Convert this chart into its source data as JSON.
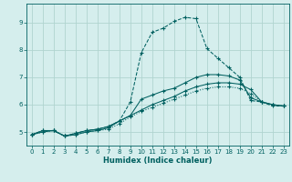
{
  "title": "",
  "xlabel": "Humidex (Indice chaleur)",
  "ylabel": "",
  "background_color": "#d5eeed",
  "grid_color": "#b0d4d0",
  "line_color": "#006060",
  "xlim": [
    -0.5,
    23.5
  ],
  "ylim": [
    4.5,
    9.7
  ],
  "yticks": [
    5,
    6,
    7,
    8,
    9
  ],
  "xticks": [
    0,
    1,
    2,
    3,
    4,
    5,
    6,
    7,
    8,
    9,
    10,
    11,
    12,
    13,
    14,
    15,
    16,
    17,
    18,
    19,
    20,
    21,
    22,
    23
  ],
  "series": [
    {
      "name": "line1_dotted",
      "linestyle": ":",
      "x": [
        0,
        1,
        2,
        3,
        4,
        5,
        6,
        7,
        8,
        9,
        10,
        11,
        12,
        13,
        14,
        15,
        16,
        17,
        18,
        19,
        20,
        21,
        22,
        23
      ],
      "y": [
        4.9,
        5.0,
        5.05,
        4.85,
        4.9,
        5.0,
        5.05,
        5.1,
        5.3,
        5.55,
        5.75,
        5.9,
        6.05,
        6.2,
        6.35,
        6.5,
        6.6,
        6.65,
        6.65,
        6.6,
        6.4,
        6.1,
        6.0,
        5.95
      ]
    },
    {
      "name": "line2_solid",
      "linestyle": "-",
      "x": [
        0,
        1,
        2,
        3,
        4,
        5,
        6,
        7,
        8,
        9,
        10,
        11,
        12,
        13,
        14,
        15,
        16,
        17,
        18,
        19,
        20,
        21,
        22,
        23
      ],
      "y": [
        4.9,
        5.0,
        5.05,
        4.85,
        4.9,
        5.0,
        5.05,
        5.15,
        5.4,
        5.6,
        5.8,
        6.0,
        6.15,
        6.3,
        6.5,
        6.65,
        6.75,
        6.8,
        6.8,
        6.75,
        6.55,
        6.1,
        6.0,
        5.95
      ]
    },
    {
      "name": "line3_solid_high",
      "linestyle": "-",
      "x": [
        0,
        1,
        2,
        3,
        4,
        5,
        6,
        7,
        8,
        9,
        10,
        11,
        12,
        13,
        14,
        15,
        16,
        17,
        18,
        19,
        20,
        21,
        22,
        23
      ],
      "y": [
        4.9,
        5.05,
        5.05,
        4.85,
        4.95,
        5.05,
        5.1,
        5.2,
        5.4,
        5.6,
        6.2,
        6.35,
        6.5,
        6.6,
        6.8,
        7.0,
        7.1,
        7.1,
        7.05,
        6.9,
        6.25,
        6.1,
        6.0,
        5.95
      ]
    },
    {
      "name": "line4_dashed_peak",
      "linestyle": "--",
      "x": [
        0,
        1,
        2,
        3,
        4,
        5,
        6,
        7,
        8,
        9,
        10,
        11,
        12,
        13,
        14,
        15,
        16,
        17,
        18,
        19,
        20,
        21,
        22,
        23
      ],
      "y": [
        4.9,
        5.05,
        5.05,
        4.85,
        4.95,
        5.05,
        5.1,
        5.2,
        5.4,
        6.1,
        7.9,
        8.65,
        8.8,
        9.05,
        9.2,
        9.15,
        8.05,
        7.7,
        7.35,
        7.0,
        6.15,
        6.1,
        5.95,
        5.95
      ]
    }
  ]
}
